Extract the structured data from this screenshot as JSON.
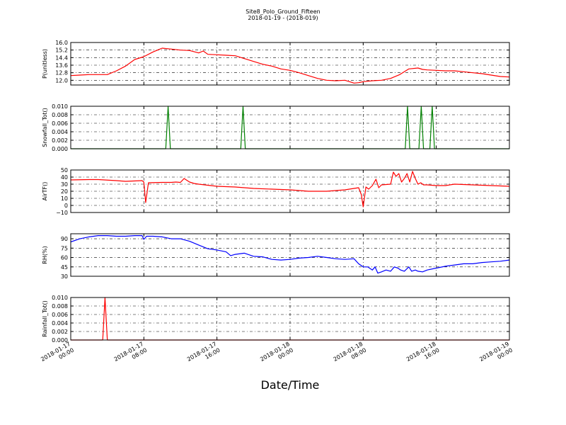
{
  "figure": {
    "title": "Site8_Polo_Ground_Fifteen",
    "subtitle": "2018-01-19 - (2018-019)",
    "xlabel": "Date/Time",
    "x_ticks": [
      [
        "2018-01-17",
        "00:00"
      ],
      [
        "2018-01-17",
        "08:00"
      ],
      [
        "2018-01-17",
        "16:00"
      ],
      [
        "2018-01-18",
        "00:00"
      ],
      [
        "2018-01-18",
        "08:00"
      ],
      [
        "2018-01-18",
        "16:00"
      ],
      [
        "2018-01-19",
        "00:00"
      ]
    ]
  },
  "chart_data": [
    {
      "type": "line",
      "ylabel": "P(unitless)",
      "ylim": [
        11.5,
        16.0
      ],
      "yticks": [
        "12.0",
        "12.8",
        "13.6",
        "14.4",
        "15.2",
        "16.0"
      ],
      "xlim_hours": [
        0,
        48
      ],
      "color": "#ff0000",
      "grid": true,
      "series": [
        {
          "x": [
            0,
            1,
            2,
            3,
            4,
            5,
            6,
            7,
            8,
            9,
            9.5,
            10,
            11,
            12,
            13,
            14,
            14.5,
            15,
            16,
            17,
            18,
            19,
            20,
            21,
            22,
            23,
            24,
            25,
            26,
            27,
            28,
            29,
            30,
            31,
            31.5,
            32,
            33,
            34,
            35,
            36,
            37,
            38,
            38.5,
            39,
            40,
            41,
            42,
            43,
            44,
            45,
            46,
            47,
            48
          ],
          "y": [
            12.5,
            12.55,
            12.6,
            12.6,
            12.6,
            13.0,
            13.5,
            14.2,
            14.5,
            15.0,
            15.2,
            15.4,
            15.3,
            15.2,
            15.15,
            14.9,
            15.1,
            14.75,
            14.7,
            14.65,
            14.6,
            14.3,
            14.0,
            13.7,
            13.5,
            13.2,
            13.05,
            12.8,
            12.5,
            12.2,
            12.0,
            11.95,
            12.0,
            11.7,
            11.75,
            11.85,
            11.95,
            12.0,
            12.2,
            12.6,
            13.2,
            13.3,
            13.15,
            13.1,
            13.05,
            13.0,
            13.0,
            12.9,
            12.8,
            12.7,
            12.55,
            12.4,
            12.35
          ]
        }
      ]
    },
    {
      "type": "line",
      "ylabel": "Snowfall_Tot()",
      "ylim": [
        0.0,
        0.01
      ],
      "yticks": [
        "0.000",
        "0.002",
        "0.004",
        "0.006",
        "0.008",
        "0.010"
      ],
      "xlim_hours": [
        0,
        48
      ],
      "color": "#008000",
      "grid": true,
      "series": [
        {
          "x": [
            0,
            10.4,
            10.65,
            10.9,
            18.6,
            18.85,
            19.1,
            36.6,
            36.85,
            37.1,
            38.1,
            38.35,
            38.6,
            39.3,
            39.55,
            39.8,
            48
          ],
          "y": [
            0,
            0,
            0.01,
            0,
            0,
            0.01,
            0,
            0,
            0.01,
            0,
            0,
            0.01,
            0,
            0,
            0.01,
            0,
            0
          ]
        }
      ]
    },
    {
      "type": "line",
      "ylabel": "AirTF()",
      "ylim": [
        -10,
        50
      ],
      "yticks": [
        "−10",
        "0",
        "10",
        "20",
        "30",
        "40",
        "50"
      ],
      "xlim_hours": [
        0,
        48
      ],
      "color": "#ff0000",
      "grid": true,
      "series": [
        {
          "x": [
            0,
            2,
            3,
            5,
            6,
            7.8,
            8,
            8.2,
            8.5,
            10,
            11,
            11.5,
            12,
            12.4,
            13,
            13.5,
            14,
            16,
            18,
            20,
            22,
            24,
            26,
            28,
            30,
            31.5,
            31.8,
            32,
            32.3,
            32.6,
            33,
            33.4,
            33.7,
            34,
            35,
            35.3,
            35.6,
            35.9,
            36.2,
            36.5,
            36.8,
            37.1,
            37.4,
            37.7,
            38,
            38.3,
            38.6,
            39,
            40,
            41,
            42,
            44,
            46,
            48
          ],
          "y": [
            36,
            36.5,
            36.5,
            35,
            34,
            35,
            33,
            4,
            32,
            32.5,
            32.5,
            33,
            32.5,
            38,
            33,
            31,
            30,
            27,
            26,
            24,
            23,
            22,
            20,
            20,
            22,
            25,
            15,
            -2,
            26,
            23,
            28,
            37,
            25,
            29,
            30,
            47,
            41,
            45,
            33,
            38,
            45,
            33,
            48,
            38,
            30,
            32,
            29,
            29,
            28,
            28,
            30,
            29,
            28,
            27
          ]
        }
      ]
    },
    {
      "type": "line",
      "ylabel": "RH(%)",
      "ylim": [
        30,
        98
      ],
      "yticks": [
        "30",
        "45",
        "60",
        "75",
        "90"
      ],
      "xlim_hours": [
        0,
        48
      ],
      "color": "#0000ff",
      "grid": true,
      "series": [
        {
          "x": [
            0,
            1,
            2,
            3,
            4,
            5,
            6,
            7,
            7.8,
            8,
            8.3,
            9,
            10,
            11,
            12,
            13,
            14,
            15,
            16,
            17,
            17.5,
            18,
            19,
            20,
            21,
            22,
            23,
            24,
            25,
            26,
            27,
            28,
            29,
            30,
            31,
            31.5,
            32,
            32.5,
            33,
            33.3,
            33.6,
            34,
            34.5,
            35,
            35.4,
            35.8,
            36.1,
            36.5,
            37,
            37.3,
            37.7,
            38,
            38.5,
            39,
            40,
            41,
            42,
            43,
            44,
            45,
            46,
            47,
            48
          ],
          "y": [
            85,
            90,
            93,
            95,
            95,
            94,
            94,
            95,
            95,
            89,
            94,
            94,
            93,
            90,
            90,
            86,
            80,
            74,
            72,
            69,
            63,
            65,
            67,
            62,
            61,
            57,
            56,
            57,
            59,
            60,
            62,
            60,
            58,
            57,
            58,
            50,
            45,
            45,
            40,
            45,
            35,
            37,
            40,
            38,
            45,
            43,
            40,
            38,
            45,
            38,
            40,
            38,
            37,
            40,
            43,
            46,
            48,
            50,
            50,
            52,
            53,
            54,
            56
          ]
        }
      ]
    },
    {
      "type": "line",
      "ylabel": "Rainfall_Tot()",
      "ylim": [
        0.0,
        0.01
      ],
      "yticks": [
        "0.000",
        "0.002",
        "0.004",
        "0.006",
        "0.008",
        "0.010"
      ],
      "xlim_hours": [
        0,
        48
      ],
      "color": "#ff0000",
      "grid": true,
      "series": [
        {
          "x": [
            0,
            3.5,
            3.75,
            4.0,
            48
          ],
          "y": [
            0,
            0,
            0.01,
            0,
            0
          ]
        }
      ]
    }
  ]
}
